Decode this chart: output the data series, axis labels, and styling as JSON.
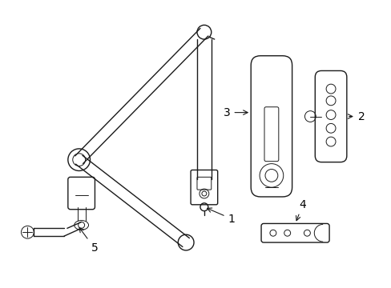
{
  "bg_color": "#ffffff",
  "line_color": "#1a1a1a",
  "lw": 1.0,
  "tlw": 0.7,
  "figsize": [
    4.89,
    3.6
  ],
  "dpi": 100
}
